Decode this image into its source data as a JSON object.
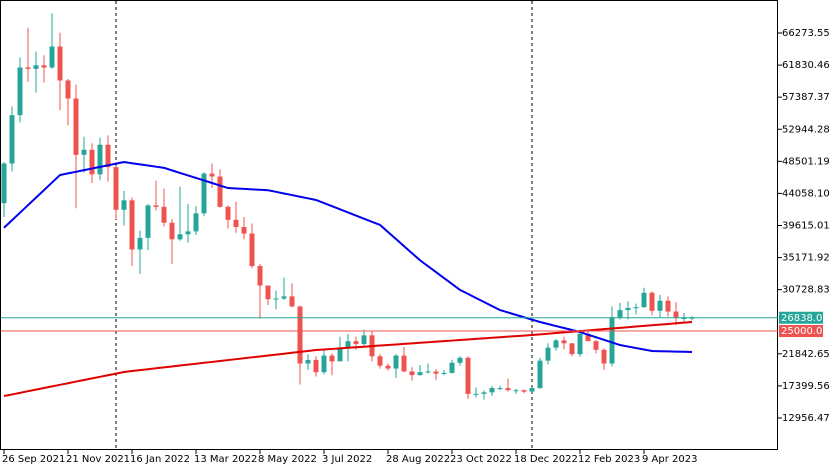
{
  "chart_data": {
    "type": "candlestick",
    "categories": [
      "26 Sep 2021",
      null,
      null,
      null,
      null,
      null,
      null,
      null,
      "21 Nov 2021",
      null,
      null,
      null,
      null,
      null,
      null,
      null,
      "16 Jan 2022",
      null,
      null,
      null,
      null,
      null,
      null,
      null,
      "13 Mar 2022",
      null,
      null,
      null,
      null,
      null,
      null,
      null,
      "8 May 2022",
      null,
      null,
      null,
      null,
      null,
      null,
      null,
      "3 Jul 2022",
      null,
      null,
      null,
      null,
      null,
      null,
      null,
      "28 Aug 2022",
      null,
      null,
      null,
      null,
      null,
      null,
      null,
      "23 Oct 2022",
      null,
      null,
      null,
      null,
      null,
      null,
      null,
      "18 Dec 2022",
      null,
      null,
      null,
      null,
      null,
      null,
      null,
      "12 Feb 2023",
      null,
      null,
      null,
      null,
      null,
      null,
      null,
      "9 Apr 2023",
      null,
      null,
      null,
      null,
      null,
      null
    ],
    "open": [
      42700,
      48200,
      54900,
      61500,
      61300,
      61800,
      61500,
      64400,
      59700,
      57200,
      49400,
      50100,
      46700,
      50800,
      47700,
      41800,
      43100,
      36300,
      37900,
      42400,
      42200,
      40000,
      37700,
      38400,
      38800,
      41300,
      46800,
      46400,
      42200,
      40400,
      39400,
      38500,
      34000,
      31300,
      29400,
      29500,
      29800,
      28400,
      20500,
      21000,
      19300,
      21600,
      20800,
      22600,
      23600,
      23200,
      24400,
      21500,
      20200,
      19800,
      21600,
      19400,
      18900,
      19300,
      19400,
      19100,
      19200,
      20600,
      21300,
      16300,
      16300,
      16500,
      17100,
      17100,
      16800,
      16800,
      16600,
      17100,
      20900,
      22700,
      23700,
      23300,
      21800,
      24600,
      23600,
      22400,
      20500,
      26900,
      27900,
      28200,
      28300,
      30300,
      27800,
      29200,
      27700,
      26800,
      26800
    ],
    "high": [
      48400,
      56100,
      62900,
      67000,
      63700,
      63200,
      69000,
      66300,
      59900,
      59100,
      51900,
      51000,
      51800,
      52100,
      47900,
      44400,
      43500,
      38900,
      42600,
      45800,
      44700,
      40500,
      45000,
      42600,
      42300,
      47000,
      48200,
      47400,
      42400,
      42900,
      40800,
      39900,
      34300,
      31300,
      30600,
      32400,
      31600,
      28500,
      21800,
      21500,
      22300,
      21900,
      24200,
      24600,
      24200,
      25200,
      25000,
      21800,
      20500,
      21800,
      22800,
      20000,
      20300,
      20500,
      19700,
      19600,
      21000,
      21500,
      21500,
      17200,
      16800,
      17400,
      17400,
      18400,
      17000,
      16900,
      17200,
      21300,
      23300,
      23900,
      24200,
      23300,
      25200,
      25200,
      23800,
      22600,
      28400,
      28900,
      29100,
      28800,
      31000,
      30500,
      30000,
      29800,
      29000,
      27500,
      27100
    ],
    "low": [
      40800,
      47100,
      53900,
      59500,
      58000,
      59400,
      61300,
      55600,
      53500,
      42000,
      46900,
      45500,
      45900,
      45700,
      40500,
      39600,
      34000,
      32900,
      36200,
      41700,
      39500,
      34300,
      37500,
      37200,
      38300,
      40900,
      44800,
      42100,
      39200,
      38600,
      37700,
      33700,
      26700,
      28600,
      28000,
      29300,
      28300,
      17600,
      19600,
      18700,
      19000,
      18900,
      20800,
      20800,
      22400,
      22700,
      20800,
      19800,
      19500,
      18500,
      19300,
      18100,
      18800,
      19100,
      18200,
      18900,
      19100,
      20200,
      15600,
      15800,
      15500,
      16000,
      16800,
      16600,
      16300,
      16400,
      16500,
      17000,
      20400,
      22300,
      22500,
      21500,
      21400,
      23600,
      21900,
      19600,
      20100,
      26600,
      26600,
      27300,
      28200,
      27200,
      26900,
      27000,
      25800,
      26100,
      26500
    ],
    "close": [
      48200,
      54900,
      61500,
      61300,
      61800,
      61500,
      64400,
      59700,
      57200,
      49400,
      50100,
      46700,
      50800,
      47700,
      41800,
      43100,
      36300,
      37900,
      42400,
      42200,
      40000,
      37700,
      38400,
      38800,
      41300,
      46800,
      46400,
      42200,
      40400,
      39400,
      38500,
      34000,
      31300,
      29400,
      29500,
      29800,
      28400,
      20500,
      21000,
      19300,
      21600,
      20800,
      22600,
      23600,
      23200,
      24400,
      21500,
      20200,
      19800,
      21600,
      19400,
      18900,
      19300,
      19400,
      19100,
      19200,
      20600,
      21300,
      16300,
      16300,
      16500,
      17100,
      17100,
      16800,
      16800,
      16600,
      17100,
      20900,
      22700,
      23700,
      23300,
      21800,
      24600,
      23600,
      22400,
      20500,
      26900,
      27900,
      28200,
      28300,
      30300,
      27800,
      29200,
      27700,
      26800,
      26800,
      26838.01
    ],
    "up_color": "#26a69a",
    "down_color": "#ef5350",
    "series": [
      {
        "color": "#0000ee",
        "values": [
          39300,
          40340,
          41390,
          42430,
          43470,
          44510,
          45560,
          46600,
          46830,
          47050,
          47280,
          47500,
          47730,
          47950,
          48180,
          48400,
          48240,
          48080,
          47920,
          47760,
          47600,
          47250,
          46900,
          46550,
          46200,
          45850,
          45500,
          45150,
          44800,
          44740,
          44680,
          44620,
          44560,
          44500,
          44280,
          44050,
          43830,
          43600,
          43380,
          43150,
          42720,
          42290,
          41860,
          41430,
          40990,
          40560,
          40130,
          39700,
          38720,
          37740,
          36760,
          35780,
          34800,
          33980,
          33160,
          32340,
          31520,
          30700,
          30140,
          29580,
          29020,
          28460,
          27900,
          27570,
          27240,
          26910,
          26580,
          26250,
          25970,
          25690,
          25420,
          25140,
          24860,
          24500,
          24140,
          23780,
          23420,
          23060,
          22850,
          22640,
          22440,
          22230,
          22200,
          22180,
          22150,
          22130,
          22100
        ]
      },
      {
        "color": "#e00000",
        "values": [
          16000,
          16220,
          16440,
          16670,
          16890,
          17110,
          17330,
          17550,
          17770,
          18000,
          18220,
          18440,
          18660,
          18880,
          19100,
          19330,
          19460,
          19580,
          19710,
          19840,
          19960,
          20090,
          20220,
          20340,
          20470,
          20600,
          20720,
          20850,
          20980,
          21100,
          21230,
          21360,
          21480,
          21610,
          21740,
          21860,
          21990,
          22120,
          22240,
          22370,
          22450,
          22520,
          22600,
          22680,
          22750,
          22830,
          22910,
          22990,
          23060,
          23140,
          23220,
          23290,
          23370,
          23450,
          23530,
          23600,
          23680,
          23760,
          23830,
          23910,
          23990,
          24070,
          24140,
          24220,
          24300,
          24370,
          24450,
          24540,
          24630,
          24720,
          24810,
          24900,
          24990,
          25080,
          25170,
          25260,
          25350,
          25440,
          25530,
          25620,
          25710,
          25800,
          25890,
          25980,
          26070,
          26160,
          26250
        ]
      }
    ],
    "price_lines": [
      {
        "value": 26838.01,
        "label": "26838.01",
        "color": "#26a69a"
      },
      {
        "value": 25000,
        "label": "25000.00",
        "color": "#ef5350"
      }
    ],
    "ylim": [
      8524,
      70844
    ],
    "yticks": [
      12956.47,
      17399.56,
      21842.65,
      30728.83,
      35171.92,
      39615.01,
      {
        "value": 44058.1,
        "label": "44058.10"
      },
      48501.19,
      52944.28,
      57387.37,
      61830.46,
      66273.55
    ]
  }
}
